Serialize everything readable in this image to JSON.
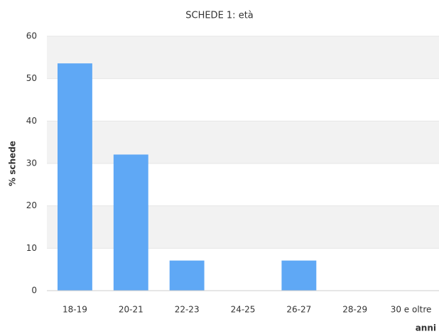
{
  "chart_data": {
    "type": "bar",
    "title": "SCHEDE 1: età",
    "y_label": "% schede",
    "x_label": "anni",
    "categories": [
      "18-19",
      "20-21",
      "22-23",
      "24-25",
      "26-27",
      "28-29",
      "30 e oltre"
    ],
    "values": [
      53.6,
      32.1,
      7.1,
      0,
      7.1,
      0,
      0
    ],
    "color": "#5fa8f5",
    "ylim": [
      0,
      60
    ],
    "yticks": [
      0,
      10,
      20,
      30,
      40,
      50,
      60
    ],
    "grid": true
  }
}
